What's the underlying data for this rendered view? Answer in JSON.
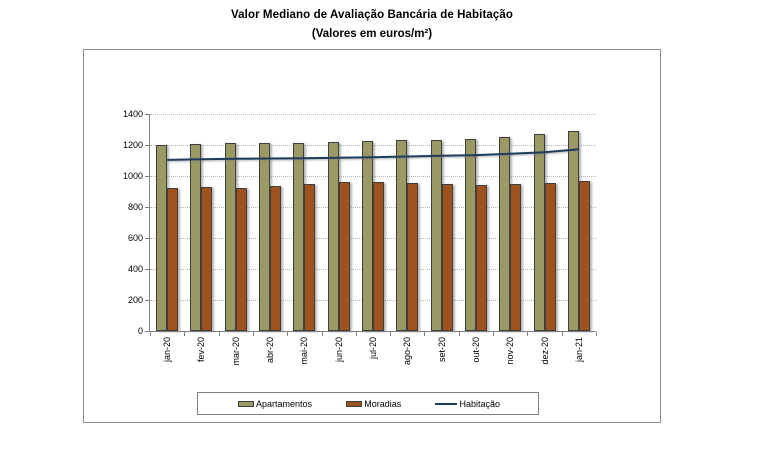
{
  "chart_data": {
    "type": "bar",
    "title": "Valor Mediano de Avaliação Bancária de Habitação",
    "subtitle": "(Valores em euros/m²)",
    "categories": [
      "jan-20",
      "fev-20",
      "mar-20",
      "abr-20",
      "mai-20",
      "jun-20",
      "jul-20",
      "ago-20",
      "set-20",
      "out-20",
      "nov-20",
      "dez-20",
      "jan-21"
    ],
    "series": [
      {
        "name": "Apartamentos",
        "kind": "bar",
        "color": "#9C9A64",
        "values": [
          1203,
          1208,
          1210,
          1212,
          1214,
          1221,
          1228,
          1232,
          1233,
          1238,
          1253,
          1268,
          1288
        ]
      },
      {
        "name": "Moradias",
        "kind": "bar",
        "color": "#A0521E",
        "values": [
          924,
          927,
          923,
          935,
          949,
          959,
          961,
          952,
          950,
          945,
          950,
          957,
          968
        ]
      },
      {
        "name": "Habitação",
        "kind": "line",
        "color": "#1F3B5D",
        "values": [
          1104,
          1108,
          1111,
          1113,
          1115,
          1118,
          1121,
          1126,
          1130,
          1135,
          1143,
          1153,
          1172
        ]
      }
    ],
    "ylim": [
      0,
      1400
    ],
    "ytick_step": 200,
    "grid": true,
    "legend_position": "bottom"
  },
  "colors": {
    "grid": "#B5B5B5",
    "axis": "#808080",
    "frame_border": "#8C8C8C",
    "bar_border": "#3E3E3E",
    "text": "#000000"
  }
}
